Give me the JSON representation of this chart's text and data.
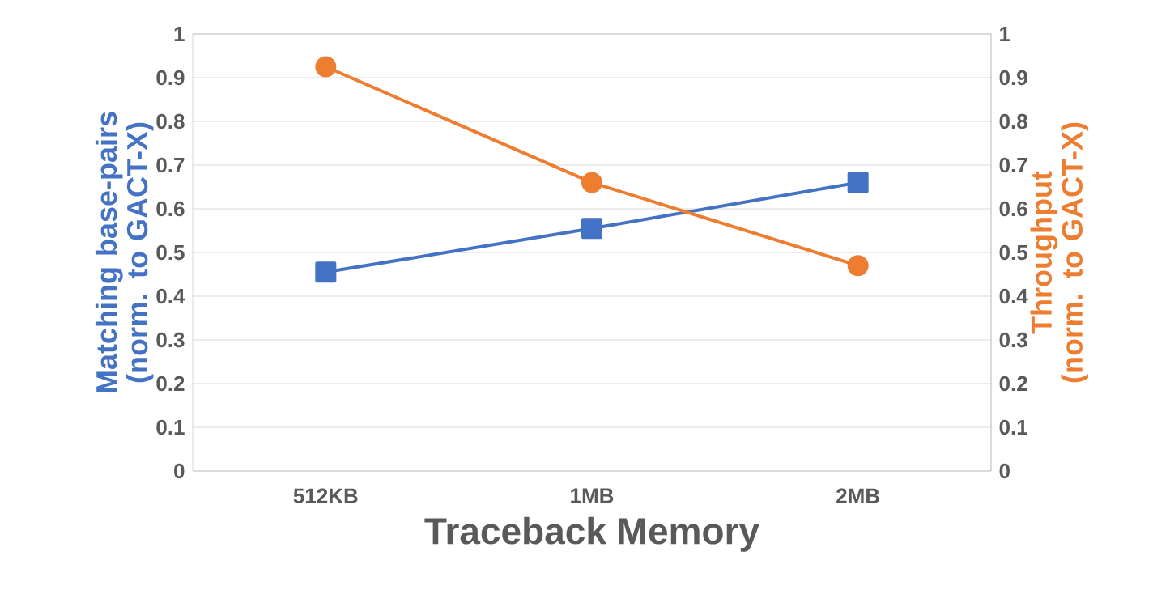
{
  "chart_data": {
    "type": "line",
    "xlabel": "Traceback Memory",
    "ylabel": "Matching base-pairs (norm. to GACT-X)",
    "y2label": "Throughput (norm. to GACT-X)",
    "categories": [
      "512KB",
      "1MB",
      "2MB"
    ],
    "series": [
      {
        "color": "#4472c4",
        "values": [
          0.455,
          0.555,
          0.66
        ],
        "marker": "square"
      },
      {
        "color": "#ed7d31",
        "values": [
          0.925,
          0.66,
          0.47
        ],
        "marker": "circle",
        "axis": "y2"
      }
    ],
    "ylim": [
      0,
      1
    ],
    "yticks": [
      0,
      0.1,
      0.2,
      0.3,
      0.4,
      0.5,
      0.6,
      0.7,
      0.8,
      0.9,
      1
    ],
    "y2lim": [
      0,
      1
    ],
    "y2ticks": [
      0,
      0.1,
      0.2,
      0.3,
      0.4,
      0.5,
      0.6,
      0.7,
      0.8,
      0.9,
      1
    ],
    "grid": "y"
  }
}
